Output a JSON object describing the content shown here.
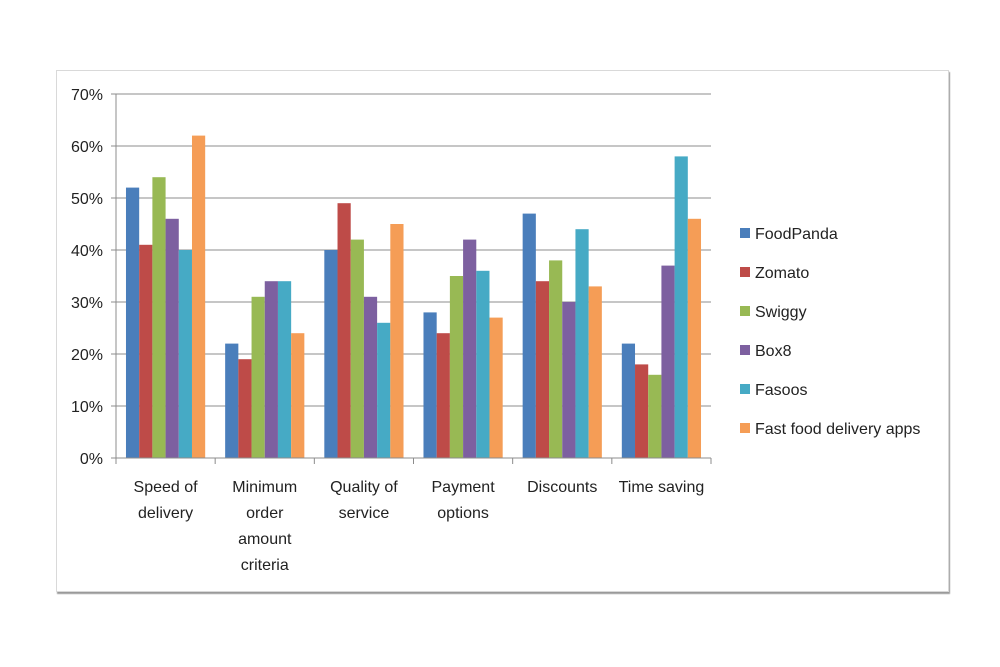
{
  "chart_data": {
    "type": "bar",
    "categories": [
      [
        "Speed of",
        "delivery"
      ],
      [
        "Minimum",
        "order",
        "amount",
        "criteria"
      ],
      [
        "Quality of",
        "service"
      ],
      [
        "Payment",
        "options"
      ],
      [
        "Discounts"
      ],
      [
        "Time saving"
      ]
    ],
    "series": [
      {
        "name": "FoodPanda",
        "color": "#4a7ebb",
        "values": [
          52,
          22,
          40,
          28,
          47,
          22
        ]
      },
      {
        "name": "Zomato",
        "color": "#be4b48",
        "values": [
          41,
          19,
          49,
          24,
          34,
          18
        ]
      },
      {
        "name": "Swiggy",
        "color": "#98b954",
        "values": [
          54,
          31,
          42,
          35,
          38,
          16
        ]
      },
      {
        "name": "Box8",
        "color": "#7d60a0",
        "values": [
          46,
          34,
          31,
          42,
          30,
          37
        ]
      },
      {
        "name": "Fasoos",
        "color": "#46aac5",
        "values": [
          40,
          34,
          26,
          36,
          44,
          58
        ]
      },
      {
        "name": "Fast food delivery apps",
        "color": "#f59d56",
        "values": [
          62,
          24,
          45,
          27,
          33,
          46
        ]
      }
    ],
    "yticks": [
      "0%",
      "10%",
      "20%",
      "30%",
      "40%",
      "50%",
      "60%",
      "70%"
    ],
    "ylim": [
      0,
      70
    ],
    "unit": "%",
    "grid": true,
    "legend": "right"
  }
}
